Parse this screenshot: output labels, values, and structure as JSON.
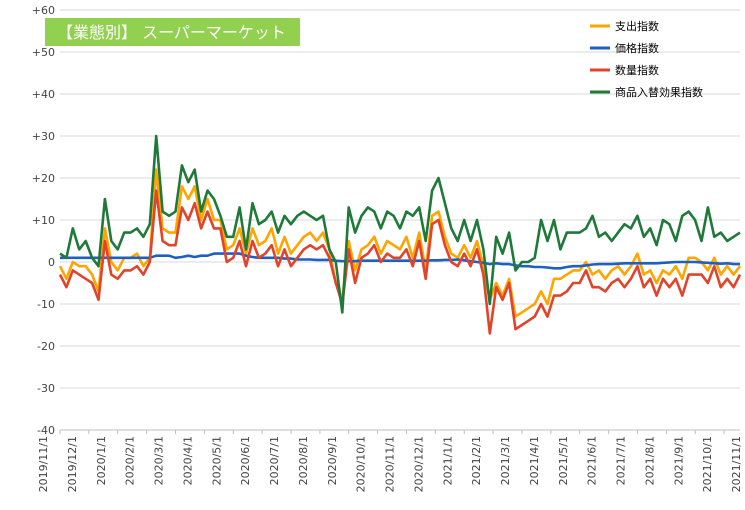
{
  "chart_data": {
    "type": "line",
    "title": "【業態別】 スーパーマーケット",
    "title_bg_color": "#92D050",
    "ylim": [
      -40,
      60
    ],
    "yticks": [
      -40,
      -30,
      -20,
      -10,
      0,
      10,
      20,
      30,
      40,
      50,
      60
    ],
    "ytick_labels": [
      "-40",
      "-30",
      "-20",
      "-10",
      "0",
      "+10",
      "+20",
      "+30",
      "+40",
      "+50",
      "+60"
    ],
    "grid": "horizontal",
    "legend_position": "top-right",
    "x_tick_labels": [
      "2019/11/1",
      "2019/12/1",
      "2020/1/1",
      "2020/2/1",
      "2020/3/1",
      "2020/4/1",
      "2020/5/1",
      "2020/6/1",
      "2020/7/1",
      "2020/8/1",
      "2020/9/1",
      "2020/10/1",
      "2020/11/1",
      "2020/12/1",
      "2021/1/1",
      "2021/2/1",
      "2021/3/1",
      "2021/4/1",
      "2021/5/1",
      "2021/6/1",
      "2021/7/1",
      "2021/8/1",
      "2021/9/1",
      "2021/10/1",
      "2021/11/1"
    ],
    "x_count": 107,
    "series": [
      {
        "name": "支出指数",
        "color": "#FFA500",
        "values": [
          -1,
          -4,
          0,
          -1,
          -1,
          -3,
          -7,
          8,
          0,
          -2,
          1,
          1,
          2,
          -1,
          1,
          22,
          8,
          7,
          7,
          18,
          15,
          18,
          10,
          15,
          10,
          10,
          3,
          4,
          8,
          2,
          8,
          4,
          5,
          8,
          2,
          6,
          2,
          4,
          6,
          7,
          5,
          7,
          3,
          -5,
          -9,
          5,
          -2,
          3,
          4,
          6,
          2,
          5,
          4,
          3,
          6,
          1,
          7,
          -2,
          11,
          12,
          6,
          2,
          1,
          4,
          1,
          5,
          -1,
          -9,
          -5,
          -8,
          -4,
          -13,
          -12,
          -11,
          -10,
          -7,
          -10,
          -4,
          -4,
          -3,
          -2,
          -2,
          0,
          -3,
          -2,
          -4,
          -2,
          -1,
          -3,
          -1,
          2,
          -3,
          -2,
          -5,
          -2,
          -3,
          -1,
          -4,
          1,
          1,
          0,
          -2,
          1,
          -3,
          -1,
          -3,
          -1
        ]
      },
      {
        "name": "価格指数",
        "color": "#1F5FBF",
        "values": [
          1,
          1,
          1,
          1,
          1,
          1,
          1,
          1,
          1,
          1,
          1,
          1,
          1,
          1,
          1,
          1.5,
          1.5,
          1.5,
          1,
          1.2,
          1.5,
          1.2,
          1.5,
          1.5,
          2,
          2,
          2,
          2,
          2,
          1.5,
          1.2,
          1,
          1,
          1,
          1,
          0.8,
          0.8,
          0.6,
          0.6,
          0.6,
          0.5,
          0.5,
          0.5,
          0.3,
          0.2,
          0.2,
          0.2,
          0.3,
          0.3,
          0.3,
          0.3,
          0.3,
          0.3,
          0.3,
          0.3,
          0.3,
          0.3,
          0.3,
          0.4,
          0.4,
          0.5,
          0.5,
          0.6,
          0.4,
          0.2,
          0,
          -0.2,
          -0.5,
          -0.3,
          -0.5,
          -0.5,
          -0.8,
          -1,
          -1,
          -1.2,
          -1.2,
          -1.3,
          -1.5,
          -1.5,
          -1.2,
          -1,
          -1,
          -0.8,
          -0.6,
          -0.5,
          -0.5,
          -0.5,
          -0.4,
          -0.3,
          -0.3,
          -0.3,
          -0.3,
          -0.3,
          -0.3,
          -0.2,
          -0.1,
          0,
          0,
          0,
          0,
          -0.1,
          -0.2,
          -0.3,
          -0.4,
          -0.3,
          -0.5,
          -0.5
        ]
      },
      {
        "name": "数量指数",
        "color": "#E0442B",
        "values": [
          -3,
          -6,
          -2,
          -3,
          -4,
          -5,
          -9,
          5,
          -3,
          -4,
          -2,
          -2,
          -1,
          -3,
          0,
          17,
          5,
          4,
          4,
          13,
          10,
          14,
          8,
          12,
          8,
          8,
          0,
          1,
          5,
          -1,
          5,
          1,
          2,
          4,
          -1,
          3,
          -1,
          1,
          3,
          4,
          3,
          4,
          1,
          -5,
          -10,
          3,
          -5,
          1,
          2,
          4,
          0,
          2,
          1,
          1,
          3,
          -1,
          5,
          -4,
          9,
          10,
          4,
          0,
          -1,
          2,
          -1,
          3,
          -3,
          -17,
          -6,
          -9,
          -5,
          -16,
          -15,
          -14,
          -13,
          -10,
          -13,
          -8,
          -8,
          -7,
          -5,
          -5,
          -2,
          -6,
          -6,
          -7,
          -5,
          -4,
          -6,
          -4,
          -1,
          -6,
          -4,
          -8,
          -4,
          -6,
          -4,
          -8,
          -3,
          -3,
          -3,
          -5,
          -1,
          -6,
          -4,
          -6,
          -3
        ]
      },
      {
        "name": "商品入替効果指数",
        "color": "#1F7A3A",
        "values": [
          2,
          1,
          8,
          3,
          5,
          1,
          -1,
          15,
          5,
          3,
          7,
          7,
          8,
          6,
          9,
          30,
          12,
          11,
          12,
          23,
          19,
          22,
          12,
          17,
          15,
          11,
          6,
          6,
          13,
          3,
          14,
          9,
          10,
          12,
          7,
          11,
          9,
          11,
          12,
          11,
          10,
          11,
          3,
          0,
          -12,
          13,
          7,
          11,
          13,
          12,
          8,
          12,
          11,
          8,
          12,
          11,
          13,
          5,
          17,
          20,
          14,
          8,
          5,
          10,
          5,
          10,
          3,
          -10,
          6,
          2,
          7,
          -2,
          0,
          0,
          1,
          10,
          5,
          10,
          3,
          7,
          7,
          7,
          8,
          11,
          6,
          7,
          5,
          7,
          9,
          8,
          11,
          6,
          8,
          4,
          10,
          9,
          5,
          11,
          12,
          10,
          5,
          13,
          6,
          7,
          5,
          6,
          7
        ]
      }
    ]
  }
}
